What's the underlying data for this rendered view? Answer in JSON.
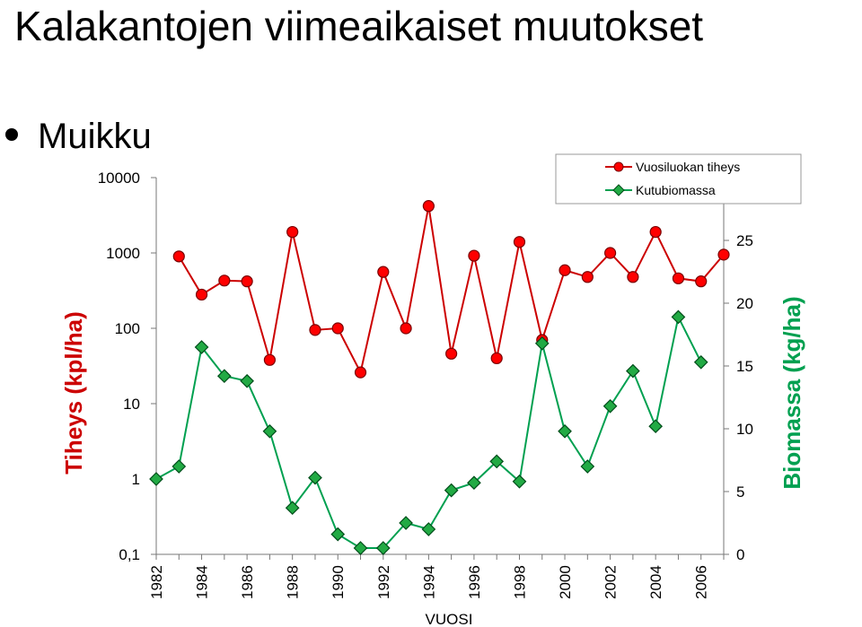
{
  "slide": {
    "title": "Kalakantojen viimeaikaiset muutokset",
    "bullet": "Muikku"
  },
  "chart_data": {
    "type": "line",
    "xlabel": "VUOSI",
    "x": [
      1982,
      1983,
      1984,
      1985,
      1986,
      1987,
      1988,
      1989,
      1990,
      1991,
      1992,
      1993,
      1994,
      1995,
      1996,
      1997,
      1998,
      1999,
      2000,
      2001,
      2002,
      2003,
      2004,
      2005,
      2006,
      2007
    ],
    "x_tick_labels": [
      "1982",
      "1984",
      "1986",
      "1988",
      "1990",
      "1992",
      "1994",
      "1996",
      "1998",
      "2000",
      "2002",
      "2004",
      "2006"
    ],
    "y_left": {
      "label": "Tiheys (kpl/ha)",
      "scale": "log",
      "range": [
        0.1,
        10000
      ],
      "tick_labels": [
        "0,1",
        "1",
        "10",
        "100",
        "1000",
        "10000"
      ],
      "color": "#cc0000"
    },
    "y_right": {
      "label": "Biomassa (kg/ha)",
      "scale": "linear",
      "range": [
        0,
        30
      ],
      "tick_labels": [
        "0",
        "5",
        "10",
        "15",
        "20",
        "25"
      ],
      "color": "#00a050"
    },
    "legend_position": "top-right",
    "series": [
      {
        "name": "Vuosiluokan tiheys",
        "axis": "left",
        "marker": "circle",
        "line_color": "#cc0000",
        "marker_fill": "#ff0000",
        "values": [
          null,
          900,
          280,
          430,
          420,
          38,
          1900,
          95,
          100,
          26,
          560,
          100,
          4200,
          46,
          920,
          40,
          1400,
          70,
          590,
          480,
          1000,
          480,
          1900,
          460,
          420,
          950
        ]
      },
      {
        "name": "Kutubiomassa",
        "axis": "right",
        "marker": "diamond",
        "line_color": "#00a050",
        "marker_fill": "#22aa44",
        "values": [
          6,
          7,
          16.5,
          14.2,
          13.8,
          9.8,
          3.7,
          6.1,
          1.6,
          0.5,
          0.5,
          2.5,
          2,
          5.1,
          5.7,
          7.4,
          5.8,
          16.8,
          9.8,
          7,
          11.8,
          14.6,
          10.2,
          18.9,
          15.3,
          null
        ]
      }
    ]
  }
}
